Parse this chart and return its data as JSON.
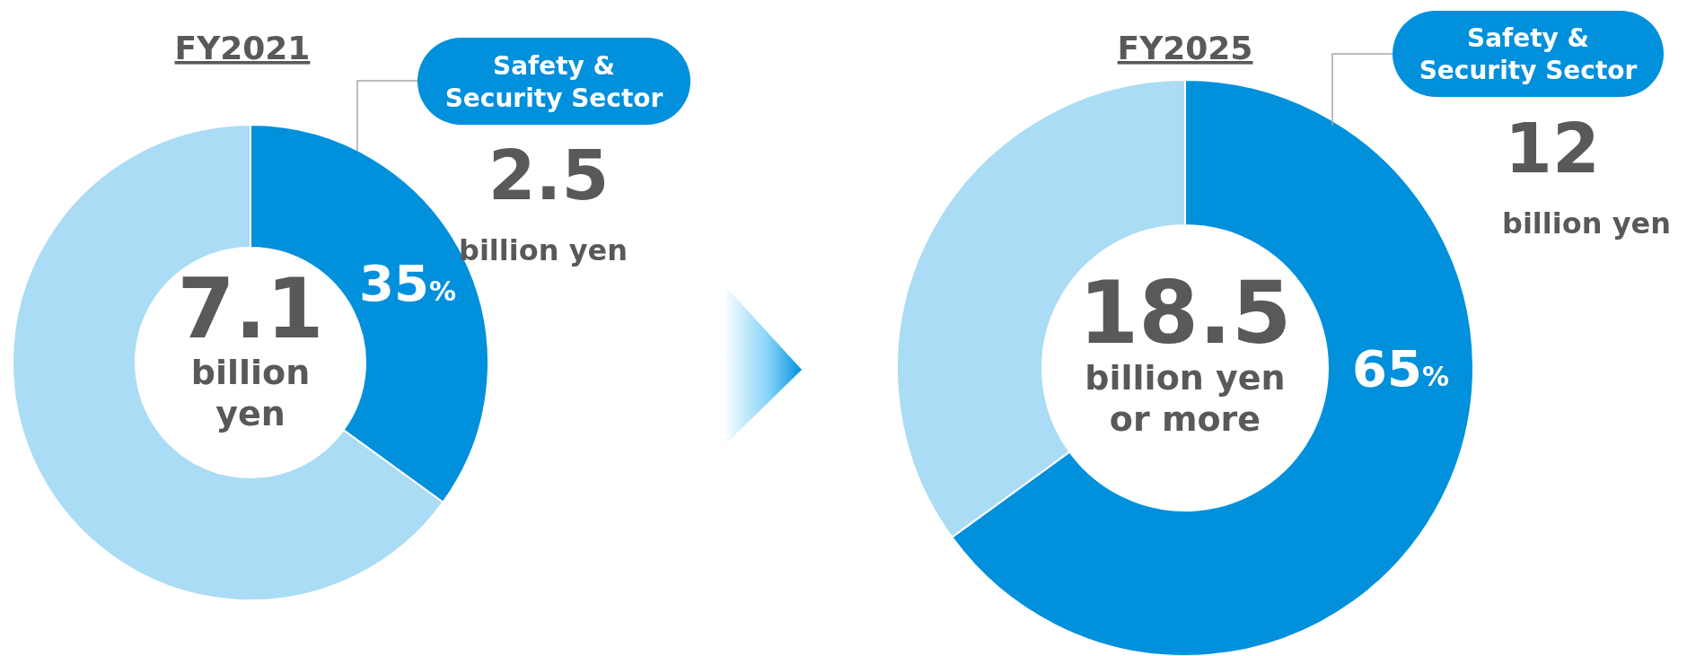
{
  "chart_data": [
    {
      "type": "donut",
      "title": "FY2021",
      "categories": [
        "Safety & Security Sector",
        null
      ],
      "values": [
        35,
        65
      ],
      "colors": [
        "#0090dc",
        "#aadcf5"
      ],
      "value_labels": [
        "35%",
        null
      ],
      "annotations": [
        "7.1",
        "billion yen",
        "2.5",
        "billion yen"
      ]
    },
    {
      "type": "donut",
      "title": "FY2025",
      "categories": [
        "Safety & Security Sector",
        null
      ],
      "values": [
        65,
        35
      ],
      "colors": [
        "#0090dc",
        "#aadcf5"
      ],
      "value_labels": [
        "65%",
        null
      ],
      "annotations": [
        "18.5",
        "billion yen or more",
        "12",
        "billion yen"
      ]
    }
  ]
}
